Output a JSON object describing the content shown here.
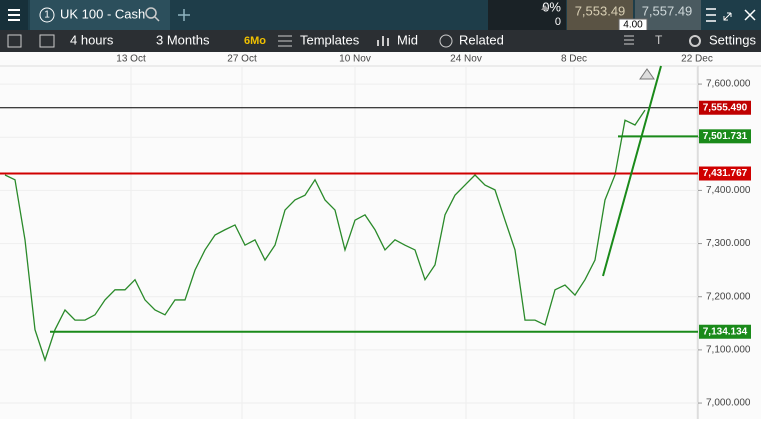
{
  "header": {
    "index_number": "1",
    "instrument": "UK 100 - Cash",
    "change_pct": "0%",
    "change": "0",
    "sell": "7,553.49",
    "spread": "4.00",
    "buy": "7,557.49"
  },
  "toolbar": {
    "interval": "4 hours",
    "range": "3 Months",
    "range_badge": "6Mo",
    "templates": "Templates",
    "price_type": "Mid",
    "related": "Related",
    "settings": "Settings"
  },
  "chart_data": {
    "type": "line",
    "color": "#2a8a2a",
    "values": [
      7429,
      7420,
      7307,
      7138,
      7081,
      7138,
      7175,
      7156,
      7156,
      7166,
      7194,
      7213,
      7213,
      7232,
      7194,
      7175,
      7166,
      7194,
      7194,
      7250,
      7288,
      7316,
      7326,
      7335,
      7297,
      7307,
      7269,
      7297,
      7363,
      7382,
      7391,
      7420,
      7382,
      7363,
      7288,
      7344,
      7354,
      7326,
      7288,
      7307,
      7297,
      7288,
      7232,
      7260,
      7354,
      7391,
      7410,
      7429,
      7410,
      7401,
      7344,
      7288,
      7156,
      7156,
      7147,
      7213,
      7222,
      7203,
      7232,
      7269,
      7382,
      7429,
      7532,
      7523,
      7551
    ],
    "xlim": [
      -0.5,
      69.3
    ],
    "xticks": [
      {
        "value": 12.6,
        "label": "13 Oct"
      },
      {
        "value": 23.7,
        "label": "27 Oct"
      },
      {
        "value": 35,
        "label": "10 Nov"
      },
      {
        "value": 46.1,
        "label": "24 Nov"
      },
      {
        "value": 56.9,
        "label": "8 Dec"
      },
      {
        "value": 69.2,
        "label": "22 Dec"
      }
    ],
    "ylim": [
      6970,
      7634
    ],
    "yticks": [
      {
        "value": 7000,
        "label": "7,000.000"
      },
      {
        "value": 7100,
        "label": "7,100.000"
      },
      {
        "value": 7200,
        "label": "7,200.000"
      },
      {
        "value": 7300,
        "label": "7,300.000"
      },
      {
        "value": 7400,
        "label": "7,400.000"
      },
      {
        "value": 7500,
        "label": "7,500.000"
      },
      {
        "value": 7600,
        "label": "7,600.000"
      }
    ],
    "levels": [
      {
        "value": 7555.49,
        "label": "7,555.490",
        "color": "#000000",
        "label_color": "#c00000"
      },
      {
        "value": 7501.731,
        "label": "7,501.731",
        "color": "#1a8a1a",
        "label_color": "#1a8a1a"
      },
      {
        "value": 7431.767,
        "label": "7,431.767",
        "color": "#d00000",
        "label_color": "#d00000"
      },
      {
        "value": 7134.134,
        "label": "7,134.134",
        "color": "#1a8a1a",
        "label_color": "#1a8a1a"
      }
    ]
  }
}
